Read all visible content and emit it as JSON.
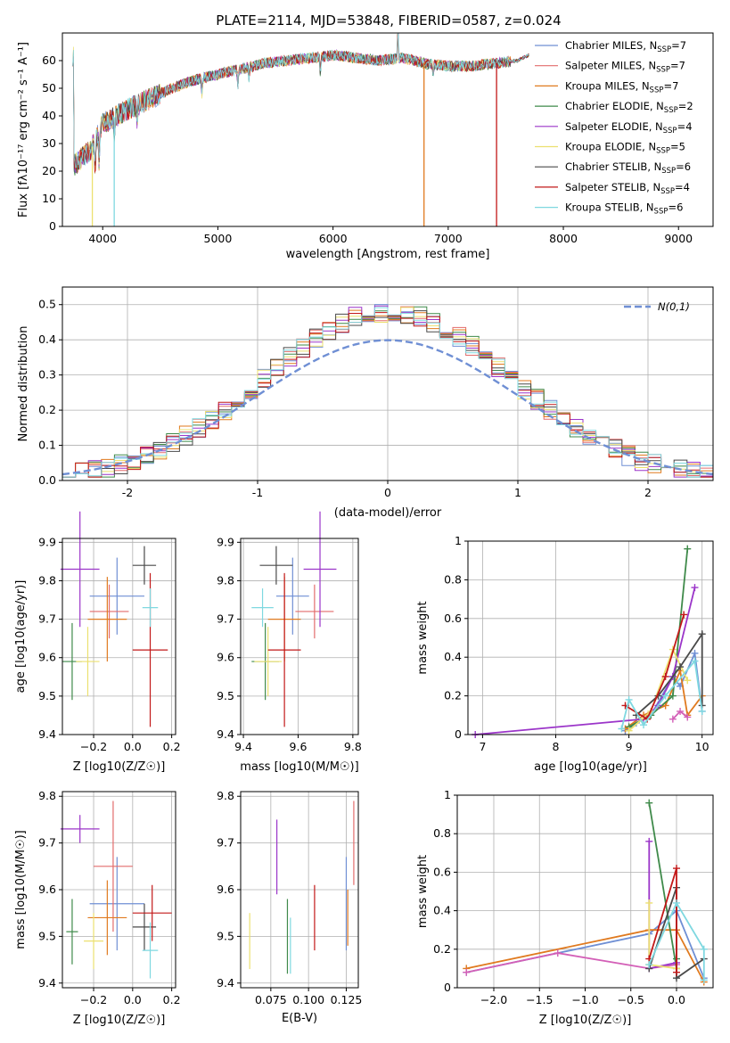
{
  "figure": {
    "title": "PLATE=2114, MJD=53848, FIBERID=0587, z=0.024"
  },
  "colors": {
    "palette": [
      "#6f8fd4",
      "#e36b6b",
      "#e07a1f",
      "#3f8a4a",
      "#9b35c9",
      "#ece06f",
      "#4a4a4a",
      "#c21818",
      "#7fd8e0",
      "#d35fb7",
      "#5fb0d9",
      "#2f7d32"
    ]
  },
  "chart_data": [
    {
      "id": "spectrum",
      "type": "line",
      "xlabel": "wavelength [Angstrom, rest frame]",
      "ylabel": "Flux [fλ10⁻¹⁷ erg cm⁻² s⁻¹ A⁻¹]",
      "xlim": [
        3650,
        9300
      ],
      "ylim": [
        0,
        70
      ],
      "xticks": [
        4000,
        5000,
        6000,
        7000,
        8000,
        9000
      ],
      "yticks": [
        0,
        10,
        20,
        30,
        40,
        50,
        60
      ],
      "grid": false,
      "legend_position": "top-right",
      "series": [
        {
          "name": "Chabrier MILES, N_SSP=7",
          "label_main": "Chabrier MILES, N",
          "label_sub": "SSP",
          "label_tail": "=7",
          "color": "#6f8fd4"
        },
        {
          "name": "Salpeter MILES, N_SSP=7",
          "label_main": "Salpeter MILES, N",
          "label_sub": "SSP",
          "label_tail": "=7",
          "color": "#e36b6b"
        },
        {
          "name": "Kroupa MILES, N_SSP=7",
          "label_main": "Kroupa MILES, N",
          "label_sub": "SSP",
          "label_tail": "=7",
          "color": "#e07a1f"
        },
        {
          "name": "Chabrier ELODIE, N_SSP=2",
          "label_main": "Chabrier ELODIE, N",
          "label_sub": "SSP",
          "label_tail": "=2",
          "color": "#3f8a4a"
        },
        {
          "name": "Salpeter ELODIE, N_SSP=4",
          "label_main": "Salpeter ELODIE, N",
          "label_sub": "SSP",
          "label_tail": "=4",
          "color": "#9b35c9"
        },
        {
          "name": "Kroupa ELODIE, N_SSP=5",
          "label_main": "Kroupa ELODIE, N",
          "label_sub": "SSP",
          "label_tail": "=5",
          "color": "#ece06f"
        },
        {
          "name": "Chabrier STELIB, N_SSP=6",
          "label_main": "Chabrier STELIB, N",
          "label_sub": "SSP",
          "label_tail": "=6",
          "color": "#4a4a4a"
        },
        {
          "name": "Salpeter STELIB, N_SSP=4",
          "label_main": "Salpeter STELIB, N",
          "label_sub": "SSP",
          "label_tail": "=4",
          "color": "#c21818"
        },
        {
          "name": "Kroupa STELIB, N_SSP=6",
          "label_main": "Kroupa STELIB, N",
          "label_sub": "SSP",
          "label_tail": "=6",
          "color": "#7fd8e0"
        }
      ],
      "continuum": {
        "x": [
          3750,
          3900,
          4000,
          4200,
          4400,
          4600,
          4800,
          5000,
          5200,
          5400,
          5600,
          5800,
          6000,
          6200,
          6400,
          6600,
          6800,
          7000,
          7200,
          7400,
          7600,
          7700
        ],
        "y": [
          22,
          28,
          37,
          42,
          46,
          50,
          53,
          55,
          57,
          59,
          60,
          61,
          62,
          61,
          60,
          61,
          59,
          58,
          58,
          59,
          60,
          62
        ]
      },
      "dropouts": [
        {
          "x": 3910,
          "color": "#ece06f"
        },
        {
          "x": 4100,
          "color": "#7fd8e0"
        },
        {
          "x": 6790,
          "color": "#e07a1f"
        },
        {
          "x": 7420,
          "color": "#c21818"
        }
      ]
    },
    {
      "id": "residuals",
      "type": "step",
      "xlabel": "(data-model)/error",
      "ylabel": "Normed distribution",
      "xlim": [
        -2.5,
        2.5
      ],
      "ylim": [
        0,
        0.55
      ],
      "xticks": [
        -2,
        -1,
        0,
        1,
        2
      ],
      "yticks": [
        0.0,
        0.1,
        0.2,
        0.3,
        0.4,
        0.5
      ],
      "ytick_labels": [
        "0.0",
        "0.1",
        "0.2",
        "0.3",
        "0.4",
        "0.5"
      ],
      "grid": true,
      "legend_position": "top-right",
      "legend": "N(0,1)",
      "reference_curve": {
        "name": "N(0,1)",
        "color": "#6f8fd4",
        "mean": 0,
        "sigma": 1
      }
    },
    {
      "id": "age_vs_Z",
      "type": "errorbar",
      "xlabel": "Z [log10(Z/Z☉)]",
      "ylabel": "age [log10(age/yr)]",
      "xlim": [
        -0.36,
        0.22
      ],
      "ylim": [
        9.4,
        9.91
      ],
      "xticks": [
        -0.2,
        0.0,
        0.2
      ],
      "xtick_labels": [
        "−0.2",
        "0.0",
        "0.2"
      ],
      "yticks": [
        9.4,
        9.5,
        9.6,
        9.7,
        9.8,
        9.9
      ],
      "grid": true,
      "points": [
        {
          "x": -0.08,
          "y": 9.76,
          "xerr": 0.14,
          "yerr": 0.1,
          "color": "#6f8fd4"
        },
        {
          "x": -0.12,
          "y": 9.72,
          "xerr": 0.1,
          "yerr": 0.07,
          "color": "#e36b6b"
        },
        {
          "x": -0.13,
          "y": 9.7,
          "xerr": 0.1,
          "yerr": 0.11,
          "color": "#e07a1f"
        },
        {
          "x": -0.31,
          "y": 9.59,
          "xerr": 0.05,
          "yerr": 0.1,
          "color": "#3f8a4a"
        },
        {
          "x": -0.27,
          "y": 9.83,
          "xerr": 0.1,
          "yerr": 0.15,
          "color": "#9b35c9"
        },
        {
          "x": -0.23,
          "y": 9.59,
          "xerr": 0.06,
          "yerr": 0.09,
          "color": "#ece06f"
        },
        {
          "x": 0.06,
          "y": 9.84,
          "xerr": 0.06,
          "yerr": 0.05,
          "color": "#4a4a4a"
        },
        {
          "x": 0.09,
          "y": 9.62,
          "xerr": 0.09,
          "yerr": 0.2,
          "color": "#c21818"
        },
        {
          "x": 0.09,
          "y": 9.73,
          "xerr": 0.04,
          "yerr": 0.05,
          "color": "#7fd8e0"
        }
      ]
    },
    {
      "id": "age_vs_mass",
      "type": "errorbar",
      "xlabel": "mass [log10(M/M☉)]",
      "ylabel": "",
      "xlim": [
        9.39,
        9.82
      ],
      "ylim": [
        9.4,
        9.91
      ],
      "xticks": [
        9.4,
        9.6,
        9.8
      ],
      "yticks": [
        9.4,
        9.5,
        9.6,
        9.7,
        9.8,
        9.9
      ],
      "grid": true,
      "points": [
        {
          "x": 9.58,
          "y": 9.76,
          "xerr": 0.06,
          "yerr": 0.1,
          "color": "#6f8fd4"
        },
        {
          "x": 9.66,
          "y": 9.72,
          "xerr": 0.07,
          "yerr": 0.07,
          "color": "#e36b6b"
        },
        {
          "x": 9.55,
          "y": 9.7,
          "xerr": 0.06,
          "yerr": 0.11,
          "color": "#e07a1f"
        },
        {
          "x": 9.48,
          "y": 9.59,
          "xerr": 0.05,
          "yerr": 0.1,
          "color": "#3f8a4a"
        },
        {
          "x": 9.68,
          "y": 9.83,
          "xerr": 0.06,
          "yerr": 0.15,
          "color": "#9b35c9"
        },
        {
          "x": 9.49,
          "y": 9.59,
          "xerr": 0.05,
          "yerr": 0.09,
          "color": "#ece06f"
        },
        {
          "x": 9.52,
          "y": 9.84,
          "xerr": 0.06,
          "yerr": 0.05,
          "color": "#4a4a4a"
        },
        {
          "x": 9.55,
          "y": 9.62,
          "xerr": 0.06,
          "yerr": 0.2,
          "color": "#c21818"
        },
        {
          "x": 9.47,
          "y": 9.73,
          "xerr": 0.04,
          "yerr": 0.05,
          "color": "#7fd8e0"
        }
      ]
    },
    {
      "id": "massweight_vs_age",
      "type": "line",
      "xlabel": "age [log10(age/yr)]",
      "ylabel": "mass weight",
      "xlim": [
        6.8,
        10.15
      ],
      "ylim": [
        0,
        1.0
      ],
      "xticks": [
        7,
        8,
        9,
        10
      ],
      "yticks": [
        0.0,
        0.2,
        0.4,
        0.6,
        0.8,
        1.0
      ],
      "grid": true,
      "series": [
        {
          "color": "#6f8fd4",
          "x": [
            8.95,
            9.1,
            9.3,
            9.6,
            9.7,
            9.9,
            10.0
          ],
          "y": [
            0.02,
            0.06,
            0.1,
            0.3,
            0.25,
            0.42,
            0.12
          ]
        },
        {
          "color": "#e07a1f",
          "x": [
            8.95,
            9.2,
            9.5,
            9.7,
            9.8,
            10.0
          ],
          "y": [
            0.03,
            0.1,
            0.15,
            0.33,
            0.1,
            0.2
          ]
        },
        {
          "color": "#3f8a4a",
          "x": [
            9.0,
            9.3,
            9.6,
            9.8
          ],
          "y": [
            0.04,
            0.1,
            0.2,
            0.96
          ]
        },
        {
          "color": "#9b35c9",
          "x": [
            6.9,
            9.2,
            9.4,
            9.6,
            9.9
          ],
          "y": [
            0.0,
            0.08,
            0.15,
            0.3,
            0.76
          ]
        },
        {
          "color": "#ece06f",
          "x": [
            9.0,
            9.3,
            9.6,
            9.8
          ],
          "y": [
            0.02,
            0.12,
            0.44,
            0.28
          ]
        },
        {
          "color": "#4a4a4a",
          "x": [
            9.1,
            9.4,
            9.7,
            10.0,
            10.0
          ],
          "y": [
            0.1,
            0.2,
            0.35,
            0.52,
            0.15
          ]
        },
        {
          "color": "#c21818",
          "x": [
            8.95,
            9.25,
            9.5,
            9.75
          ],
          "y": [
            0.15,
            0.08,
            0.3,
            0.62
          ]
        },
        {
          "color": "#7fd8e0",
          "x": [
            8.9,
            9.0,
            9.2,
            9.5,
            9.9,
            10.0
          ],
          "y": [
            0.03,
            0.18,
            0.05,
            0.2,
            0.38,
            0.12
          ]
        },
        {
          "color": "#d35fb7",
          "x": [
            9.6,
            9.7,
            9.8
          ],
          "y": [
            0.08,
            0.12,
            0.09
          ]
        }
      ]
    },
    {
      "id": "mass_vs_Z",
      "type": "errorbar",
      "xlabel": "Z [log10(Z/Z☉)]",
      "ylabel": "mass [log10(M/M☉)]",
      "xlim": [
        -0.36,
        0.22
      ],
      "ylim": [
        9.39,
        9.81
      ],
      "xticks": [
        -0.2,
        0.0,
        0.2
      ],
      "xtick_labels": [
        "−0.2",
        "0.0",
        "0.2"
      ],
      "yticks": [
        9.4,
        9.5,
        9.6,
        9.7,
        9.8
      ],
      "grid": true,
      "points": [
        {
          "x": -0.08,
          "y": 9.57,
          "xerr": 0.14,
          "yerr": 0.1,
          "color": "#6f8fd4"
        },
        {
          "x": -0.1,
          "y": 9.65,
          "xerr": 0.1,
          "yerr": 0.14,
          "color": "#e36b6b"
        },
        {
          "x": -0.13,
          "y": 9.54,
          "xerr": 0.1,
          "yerr": 0.08,
          "color": "#e07a1f"
        },
        {
          "x": -0.31,
          "y": 9.51,
          "xerr": 0.03,
          "yerr": 0.07,
          "color": "#3f8a4a"
        },
        {
          "x": -0.27,
          "y": 9.73,
          "xerr": 0.1,
          "yerr": 0.03,
          "color": "#9b35c9"
        },
        {
          "x": -0.2,
          "y": 9.49,
          "xerr": 0.05,
          "yerr": 0.06,
          "color": "#ece06f"
        },
        {
          "x": 0.06,
          "y": 9.52,
          "xerr": 0.06,
          "yerr": 0.05,
          "color": "#4a4a4a"
        },
        {
          "x": 0.1,
          "y": 9.55,
          "xerr": 0.1,
          "yerr": 0.06,
          "color": "#c21818"
        },
        {
          "x": 0.09,
          "y": 9.47,
          "xerr": 0.04,
          "yerr": 0.06,
          "color": "#7fd8e0"
        }
      ]
    },
    {
      "id": "mass_vs_EBV",
      "type": "errorbar",
      "xlabel": "E(B-V)",
      "ylabel": "",
      "xlim": [
        0.055,
        0.133
      ],
      "ylim": [
        9.39,
        9.81
      ],
      "xticks": [
        0.075,
        0.1,
        0.125
      ],
      "xtick_labels": [
        "0.075",
        "0.100",
        "0.125"
      ],
      "yticks": [
        9.4,
        9.5,
        9.6,
        9.7,
        9.8
      ],
      "grid": true,
      "points": [
        {
          "x": 0.061,
          "y": 9.49,
          "xerr": 0,
          "yerr": 0.06,
          "color": "#ece06f"
        },
        {
          "x": 0.079,
          "y": 9.67,
          "xerr": 0,
          "yerr": 0.08,
          "color": "#9b35c9"
        },
        {
          "x": 0.086,
          "y": 9.5,
          "xerr": 0,
          "yerr": 0.08,
          "color": "#3f8a4a"
        },
        {
          "x": 0.088,
          "y": 9.48,
          "xerr": 0,
          "yerr": 0.06,
          "color": "#7fd8e0"
        },
        {
          "x": 0.104,
          "y": 9.54,
          "xerr": 0,
          "yerr": 0.07,
          "color": "#c21818"
        },
        {
          "x": 0.125,
          "y": 9.57,
          "xerr": 0,
          "yerr": 0.1,
          "color": "#6f8fd4"
        },
        {
          "x": 0.126,
          "y": 9.54,
          "xerr": 0,
          "yerr": 0.06,
          "color": "#e07a1f"
        },
        {
          "x": 0.13,
          "y": 9.7,
          "xerr": 0,
          "yerr": 0.09,
          "color": "#e36b6b"
        }
      ]
    },
    {
      "id": "massweight_vs_Z",
      "type": "line",
      "xlabel": "Z [log10(Z/Z☉)]",
      "ylabel": "mass weight",
      "xlim": [
        -2.4,
        0.4
      ],
      "ylim": [
        0,
        1.0
      ],
      "xticks": [
        -2.0,
        -1.5,
        -1.0,
        -0.5,
        0.0
      ],
      "xtick_labels": [
        "−2.0",
        "−1.5",
        "−1.0",
        "−0.5",
        "0.0"
      ],
      "yticks": [
        0.0,
        0.2,
        0.4,
        0.6,
        0.8,
        1.0
      ],
      "grid": true,
      "series": [
        {
          "color": "#6f8fd4",
          "x": [
            -2.3,
            -0.3,
            0.0,
            0.3
          ],
          "y": [
            0.08,
            0.28,
            0.4,
            0.05
          ]
        },
        {
          "color": "#e07a1f",
          "x": [
            -2.3,
            -0.3,
            0.0,
            0.3
          ],
          "y": [
            0.1,
            0.3,
            0.3,
            0.03
          ]
        },
        {
          "color": "#d35fb7",
          "x": [
            -2.3,
            -1.3,
            -0.3,
            0.0
          ],
          "y": [
            0.08,
            0.18,
            0.1,
            0.12
          ]
        },
        {
          "color": "#3f8a4a",
          "x": [
            -0.3,
            0.0,
            0.0
          ],
          "y": [
            0.96,
            0.1,
            0.15
          ]
        },
        {
          "color": "#9b35c9",
          "x": [
            -0.3,
            -0.3,
            0.0
          ],
          "y": [
            0.76,
            0.1,
            0.13
          ]
        },
        {
          "color": "#ece06f",
          "x": [
            -0.3,
            -0.3,
            0.0
          ],
          "y": [
            0.44,
            0.12,
            0.1
          ]
        },
        {
          "color": "#4a4a4a",
          "x": [
            -0.3,
            0.0,
            0.0,
            0.3
          ],
          "y": [
            0.1,
            0.52,
            0.05,
            0.15
          ]
        },
        {
          "color": "#c21818",
          "x": [
            -0.3,
            0.0,
            0.0
          ],
          "y": [
            0.15,
            0.62,
            0.08
          ]
        },
        {
          "color": "#7fd8e0",
          "x": [
            -0.3,
            0.0,
            0.3,
            0.3
          ],
          "y": [
            0.12,
            0.44,
            0.2,
            0.04
          ]
        }
      ]
    }
  ]
}
